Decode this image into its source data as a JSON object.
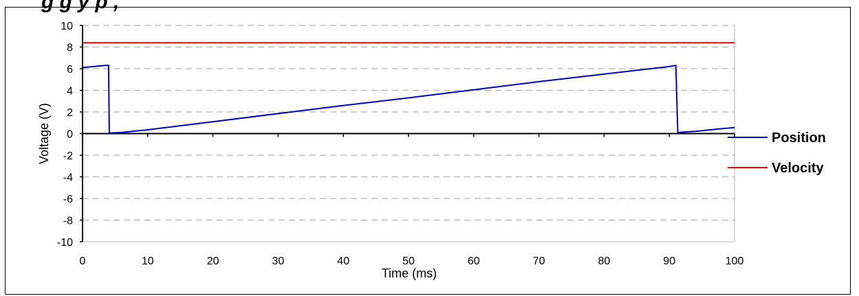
{
  "title_fragment": "g          g                y                           p    ,",
  "chart_data": {
    "type": "line",
    "xlabel": "Time (ms)",
    "ylabel": "Voltage (V)",
    "xlim": [
      0,
      100
    ],
    "ylim": [
      -10,
      10
    ],
    "x_ticks": [
      "0",
      "10",
      "20",
      "30",
      "40",
      "50",
      "60",
      "70",
      "80",
      "90",
      "100"
    ],
    "y_ticks": [
      "10",
      "8",
      "6",
      "4",
      "2",
      "0",
      "-2",
      "-4",
      "-6",
      "-8",
      "-10"
    ],
    "grid": "horizontal-dashed",
    "legend_position": "right",
    "series": [
      {
        "name": "Position",
        "color": "#0000cc",
        "points": [
          [
            0,
            6.1
          ],
          [
            3.5,
            6.3
          ],
          [
            4.0,
            6.3
          ],
          [
            4.1,
            0.05
          ],
          [
            6,
            0.1
          ],
          [
            10,
            0.35
          ],
          [
            20,
            1.1
          ],
          [
            30,
            1.85
          ],
          [
            40,
            2.6
          ],
          [
            50,
            3.3
          ],
          [
            60,
            4.05
          ],
          [
            70,
            4.8
          ],
          [
            80,
            5.5
          ],
          [
            90,
            6.2
          ],
          [
            91.0,
            6.3
          ],
          [
            91.3,
            0.1
          ],
          [
            94,
            0.2
          ],
          [
            98,
            0.45
          ],
          [
            100,
            0.55
          ]
        ]
      },
      {
        "name": "Velocity",
        "color": "#ff0000",
        "points": [
          [
            0,
            8.4
          ],
          [
            100,
            8.4
          ]
        ]
      }
    ]
  }
}
